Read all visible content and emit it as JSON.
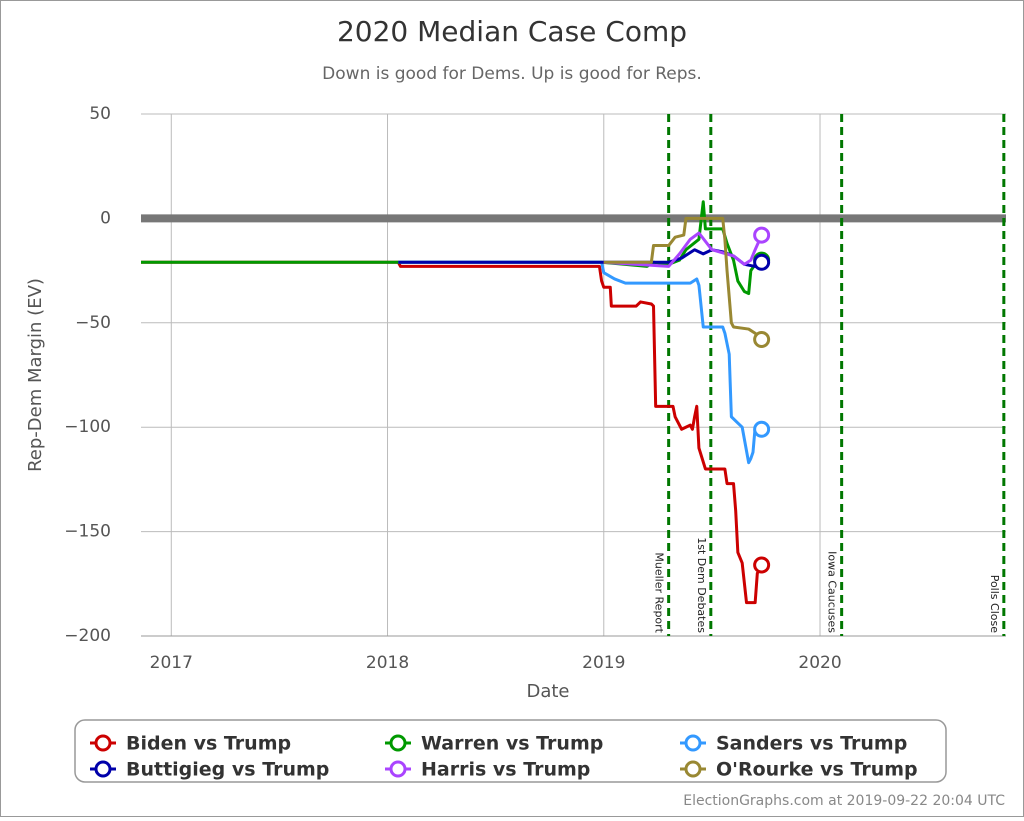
{
  "chart_data": {
    "type": "line",
    "title": "2020 Median Case Comp",
    "subtitle": "Down is good for Dems. Up is good for Reps.",
    "x_label": "Date",
    "y_label": "Rep-Dem Margin (EV)",
    "credit": "ElectionGraphs.com at 2019-09-22 20:04 UTC",
    "xlim": [
      2016.86,
      2020.86
    ],
    "xticks": [
      2017,
      2018,
      2019,
      2020
    ],
    "ylim": [
      -200,
      50
    ],
    "yticks": [
      50,
      0,
      {
        "value": -50,
        "label": "−50"
      },
      {
        "value": -100,
        "label": "−100"
      },
      {
        "value": -150,
        "label": "−150"
      },
      {
        "value": -200,
        "label": "−200"
      }
    ],
    "grid": true,
    "reference_line": {
      "value": 0,
      "color": "#777777"
    },
    "events": [
      {
        "label": "Mueller Report",
        "x": 2019.3
      },
      {
        "label": "1st Dem Debates",
        "x": 2019.495
      },
      {
        "label": "Iowa Caucuses",
        "x": 2020.1
      },
      {
        "label": "Polls Close",
        "x": 2020.85
      }
    ],
    "event_color": "#007700",
    "legend_position": "bottom",
    "series": [
      {
        "name": "Biden vs Trump",
        "color": "#cc0000",
        "x": [
          2016.86,
          2018.05,
          2018.06,
          2018.98,
          2018.99,
          2019.0,
          2019.03,
          2019.035,
          2019.15,
          2019.17,
          2019.22,
          2019.23,
          2019.24,
          2019.32,
          2019.33,
          2019.36,
          2019.4,
          2019.41,
          2019.42,
          2019.43,
          2019.44,
          2019.47,
          2019.56,
          2019.57,
          2019.6,
          2019.61,
          2019.62,
          2019.64,
          2019.66,
          2019.7,
          2019.71,
          2019.73
        ],
        "values": [
          -21,
          -21,
          -23,
          -23,
          -30,
          -33,
          -33,
          -42,
          -42,
          -40,
          -41,
          -42,
          -90,
          -90,
          -95,
          -101,
          -99,
          -101,
          -95,
          -90,
          -110,
          -120,
          -120,
          -127,
          -127,
          -140,
          -160,
          -165,
          -184,
          -184,
          -170,
          -166
        ]
      },
      {
        "name": "Warren vs Trump",
        "color": "#009900",
        "x": [
          2016.86,
          2018.99,
          2019.1,
          2019.2,
          2019.23,
          2019.3,
          2019.35,
          2019.38,
          2019.44,
          2019.46,
          2019.47,
          2019.55,
          2019.57,
          2019.6,
          2019.62,
          2019.65,
          2019.67,
          2019.68,
          2019.7,
          2019.73
        ],
        "values": [
          -21,
          -21,
          -22,
          -23,
          -21,
          -22,
          -20,
          -15,
          -10,
          8,
          -5,
          -5,
          -12,
          -20,
          -30,
          -35,
          -36,
          -25,
          -22,
          -20
        ]
      },
      {
        "name": "Sanders vs Trump",
        "color": "#3399ff",
        "x": [
          2018.05,
          2018.99,
          2019.0,
          2019.05,
          2019.1,
          2019.4,
          2019.43,
          2019.44,
          2019.46,
          2019.55,
          2019.56,
          2019.58,
          2019.59,
          2019.62,
          2019.64,
          2019.67,
          2019.68,
          2019.69,
          2019.7,
          2019.73
        ],
        "values": [
          -21,
          -21,
          -26,
          -29,
          -31,
          -31,
          -29,
          -32,
          -52,
          -52,
          -55,
          -65,
          -95,
          -98,
          -100,
          -117,
          -115,
          -112,
          -100,
          -101
        ]
      },
      {
        "name": "Buttigieg vs Trump",
        "color": "#0000aa",
        "x": [
          2018.05,
          2019.3,
          2019.36,
          2019.42,
          2019.46,
          2019.5,
          2019.55,
          2019.6,
          2019.65,
          2019.7,
          2019.73
        ],
        "values": [
          -21,
          -21,
          -19,
          -15,
          -17,
          -15,
          -16,
          -18,
          -22,
          -23,
          -21
        ]
      },
      {
        "name": "Harris vs Trump",
        "color": "#aa44ff",
        "x": [
          2019.0,
          2019.3,
          2019.35,
          2019.4,
          2019.44,
          2019.5,
          2019.6,
          2019.65,
          2019.68,
          2019.7,
          2019.73
        ],
        "values": [
          -21,
          -23,
          -17,
          -10,
          -7,
          -15,
          -18,
          -22,
          -20,
          -15,
          -8
        ]
      },
      {
        "name": "O'Rourke vs Trump",
        "color": "#998833",
        "x": [
          2019.0,
          2019.22,
          2019.23,
          2019.3,
          2019.33,
          2019.37,
          2019.38,
          2019.55,
          2019.56,
          2019.57,
          2019.59,
          2019.6,
          2019.67,
          2019.7,
          2019.73
        ],
        "values": [
          -21,
          -21,
          -13,
          -13,
          -9,
          -8,
          0,
          0,
          -10,
          -25,
          -50,
          -52,
          -53,
          -55,
          -58
        ]
      }
    ]
  }
}
